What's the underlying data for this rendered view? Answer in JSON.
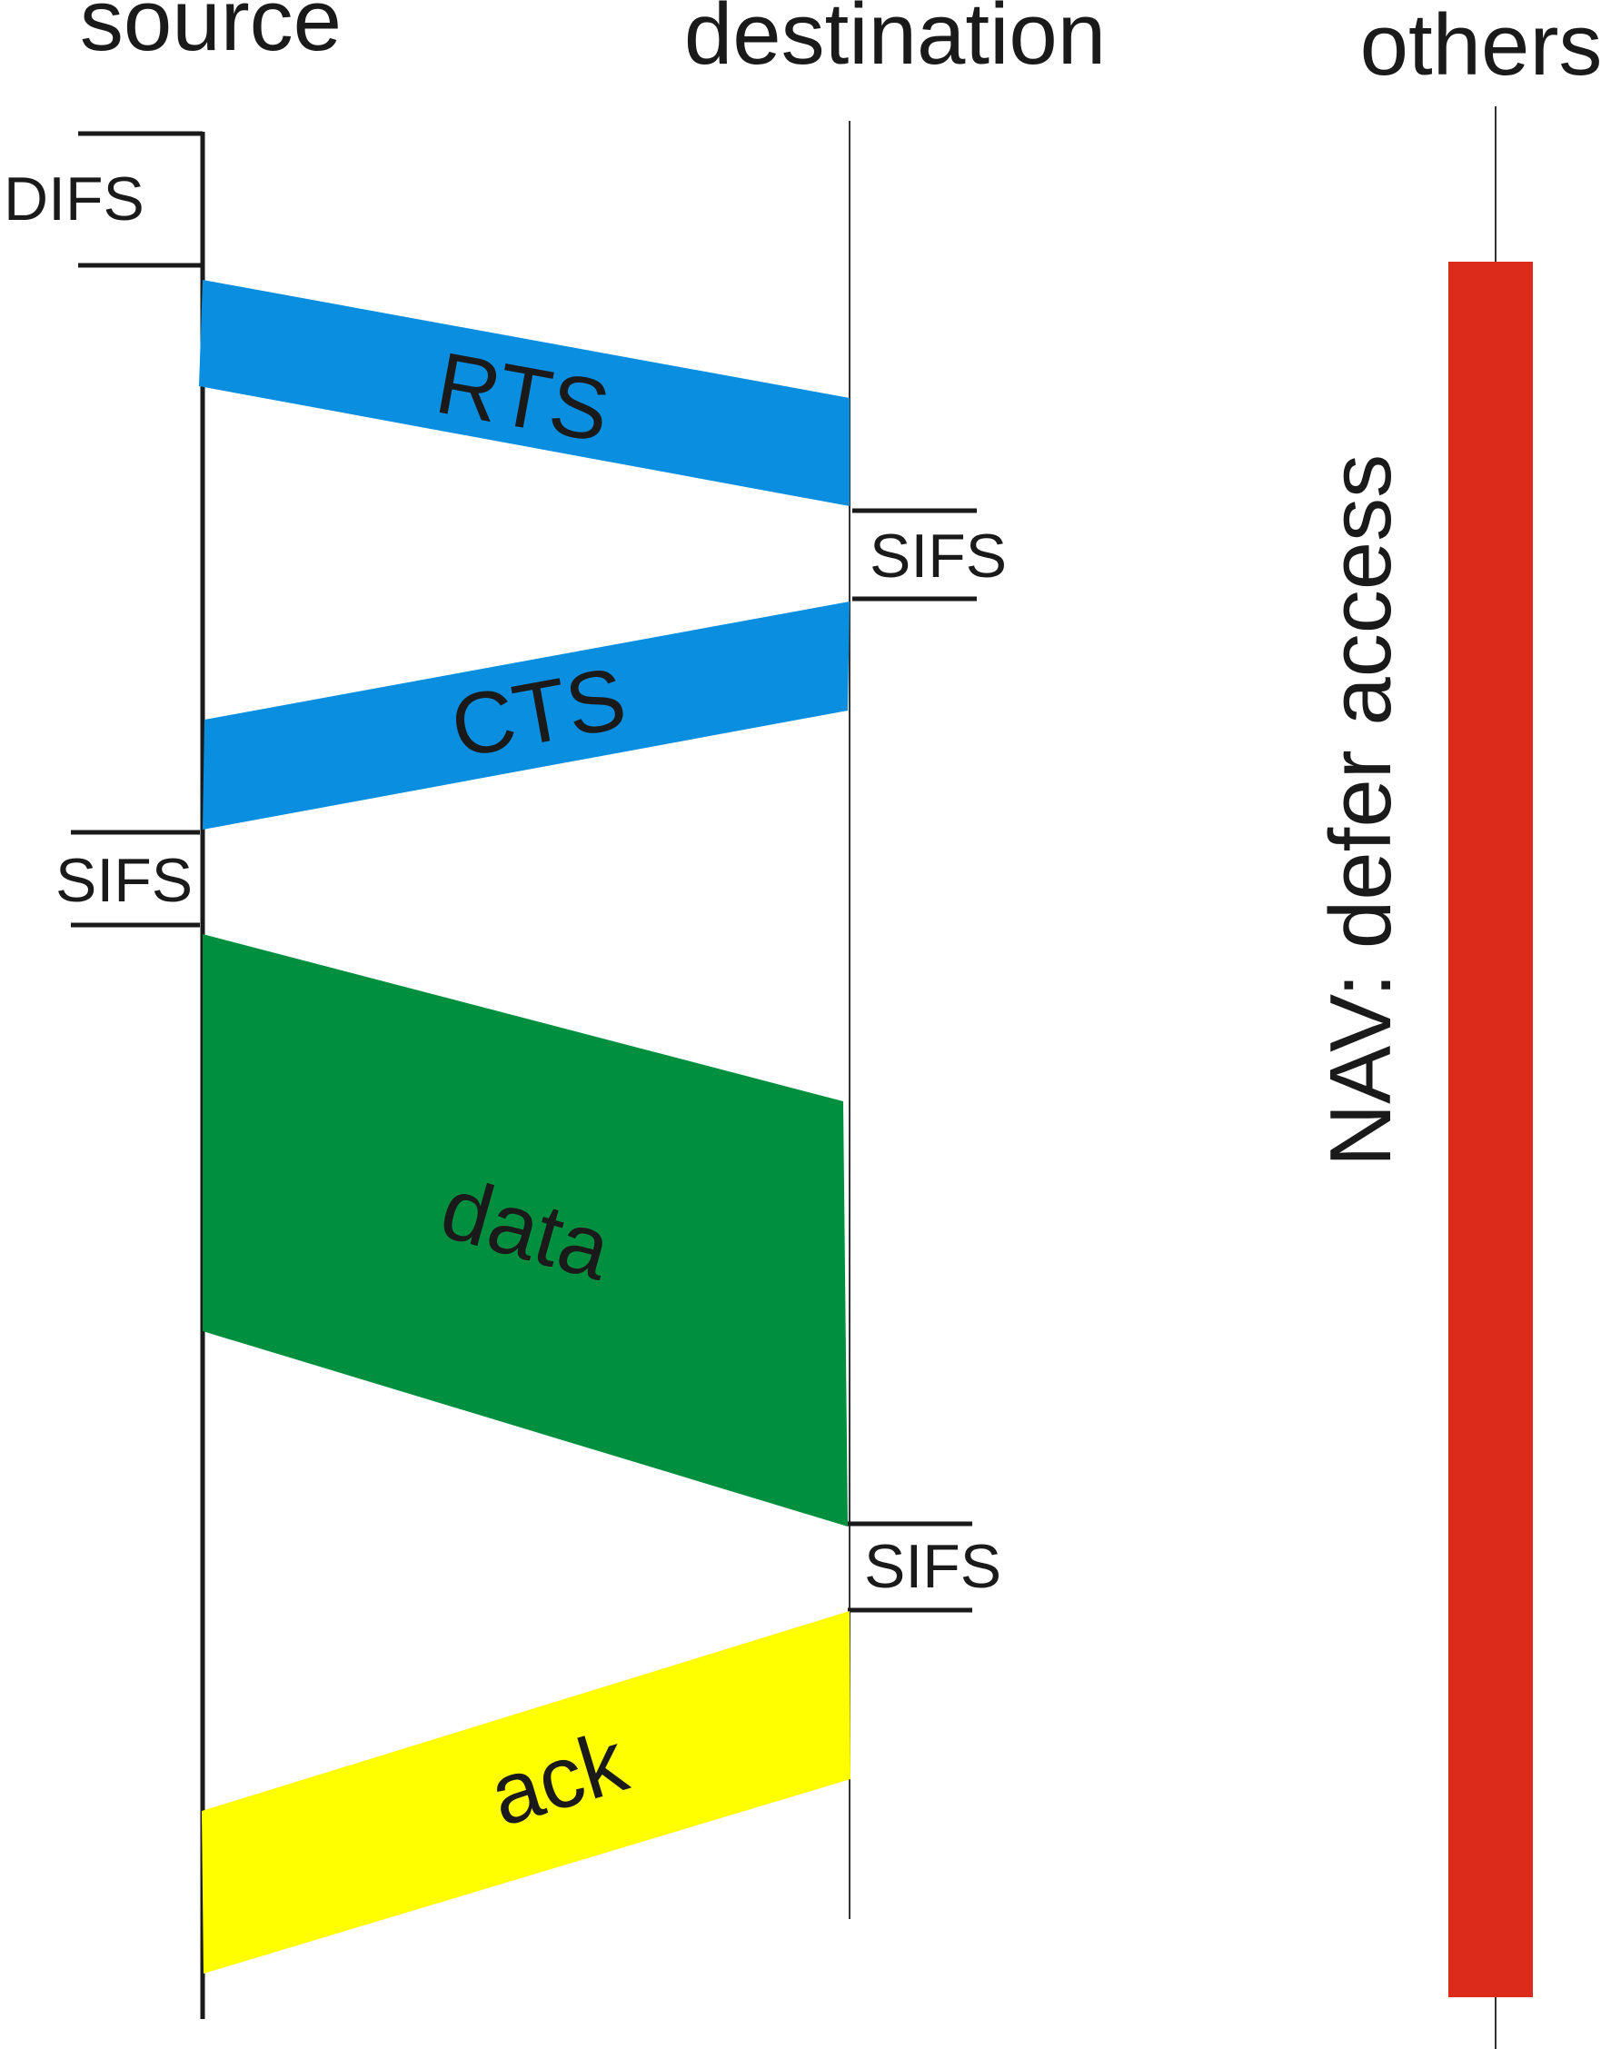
{
  "columns": {
    "source": "source",
    "destination": "destination",
    "others": "others"
  },
  "intervals": {
    "difs": "DIFS",
    "sifs_after_rts": "SIFS",
    "sifs_after_cts": "SIFS",
    "sifs_after_data": "SIFS"
  },
  "frames": {
    "rts": "RTS",
    "cts": "CTS",
    "data": "data",
    "ack": "ack"
  },
  "nav": {
    "label": "NAV: defer access"
  },
  "colors": {
    "rts": "#0a8ee0",
    "cts": "#0a8ee0",
    "data": "#008f3f",
    "ack": "#ffff00",
    "nav": "#dc2b1a",
    "timeline_line": "#1a1a1a"
  }
}
